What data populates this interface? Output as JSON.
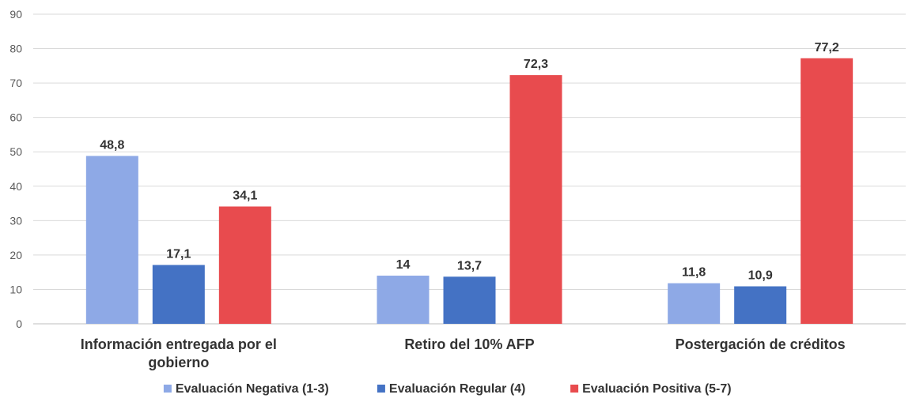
{
  "chart_data": {
    "type": "bar",
    "title": "",
    "xlabel": "",
    "ylabel": "",
    "ylim": [
      0,
      90
    ],
    "yticks": [
      0,
      10,
      20,
      30,
      40,
      50,
      60,
      70,
      80,
      90
    ],
    "grid": true,
    "legend_position": "bottom",
    "categories": [
      "Información entregada por el gobierno",
      "Retiro del 10% AFP",
      "Postergación de créditos"
    ],
    "series": [
      {
        "name": "Evaluación Negativa (1-3)",
        "color": "#8EA9E6",
        "values": [
          48.8,
          14,
          11.8
        ],
        "labels": [
          "48,8",
          "14",
          "11,8"
        ]
      },
      {
        "name": "Evaluación Regular (4)",
        "color": "#4472C4",
        "values": [
          17.1,
          13.7,
          10.9
        ],
        "labels": [
          "17,1",
          "13,7",
          "10,9"
        ]
      },
      {
        "name": "Evaluación Positiva (5-7)",
        "color": "#E84B4E",
        "values": [
          34.1,
          72.3,
          77.2
        ],
        "labels": [
          "34,1",
          "72,3",
          "77,2"
        ]
      }
    ]
  }
}
